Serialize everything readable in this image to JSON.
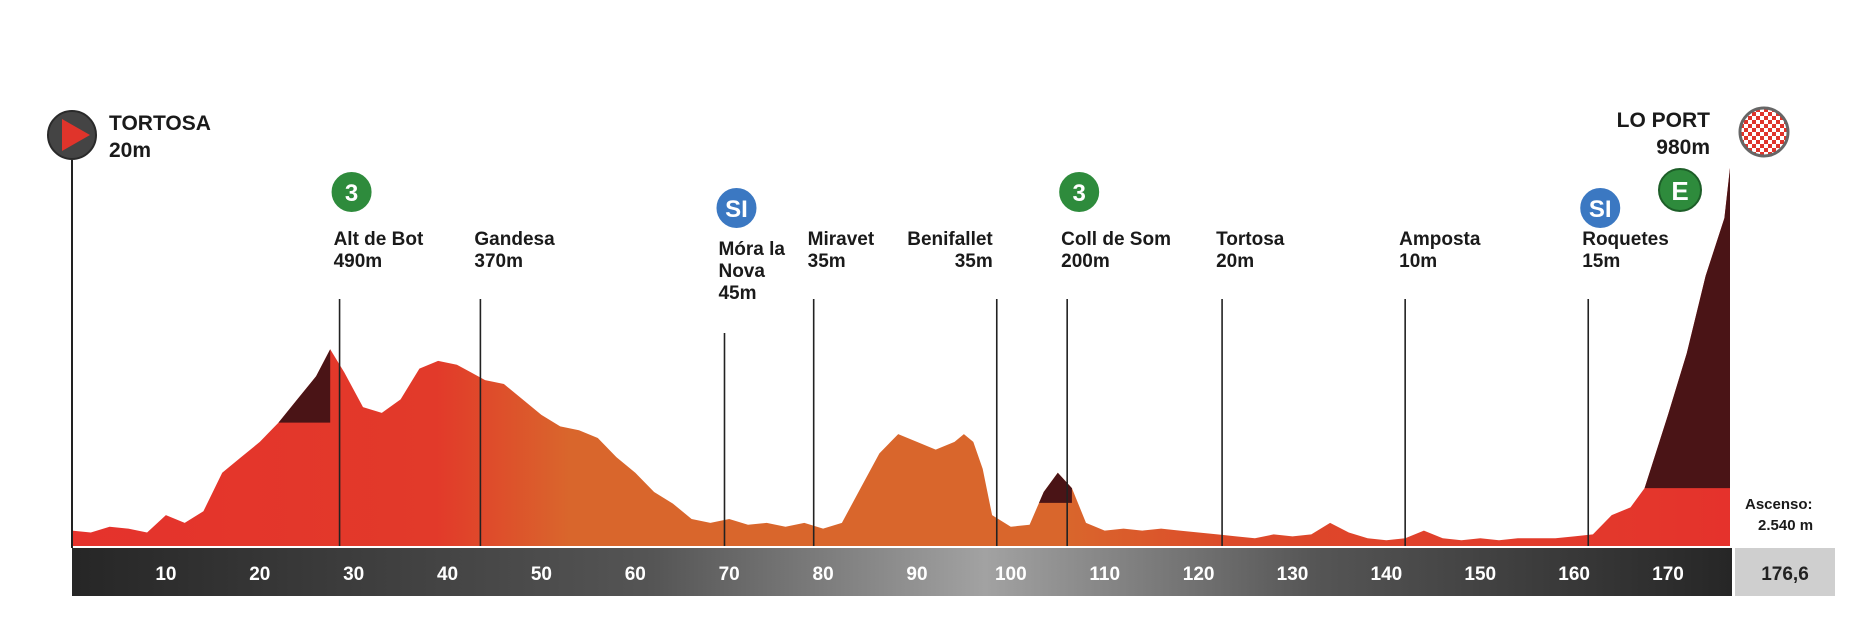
{
  "colors": {
    "red": "#e8322b",
    "orange": "#d9662c",
    "dark": "#4a1416",
    "kom_badge": "#2e8b3c",
    "sprint_badge": "#3b78c2",
    "axis_dark": "#2a2a2a",
    "axis_mid": "#9a9a9a"
  },
  "start": {
    "name": "TORTOSA",
    "alt": "20m",
    "icon": "start-arrow-icon"
  },
  "finish": {
    "name": "LO PORT",
    "alt": "980m",
    "icon": "checkered-flag-icon"
  },
  "ascenso": {
    "label": "Ascenso:",
    "value": "2.540 m"
  },
  "total_km": "176,6",
  "chart_data": {
    "type": "area",
    "xlim": [
      0,
      176.6
    ],
    "x_ticks": [
      10,
      20,
      30,
      40,
      50,
      60,
      70,
      80,
      90,
      100,
      110,
      120,
      130,
      140,
      150,
      160,
      170
    ],
    "profile": [
      [
        0,
        40
      ],
      [
        2,
        35
      ],
      [
        4,
        50
      ],
      [
        6,
        45
      ],
      [
        8,
        35
      ],
      [
        10,
        80
      ],
      [
        12,
        60
      ],
      [
        14,
        90
      ],
      [
        16,
        190
      ],
      [
        18,
        230
      ],
      [
        20,
        270
      ],
      [
        22,
        320
      ],
      [
        24,
        380
      ],
      [
        26,
        440
      ],
      [
        27.5,
        510
      ],
      [
        29,
        450
      ],
      [
        31,
        360
      ],
      [
        33,
        345
      ],
      [
        35,
        380
      ],
      [
        37,
        460
      ],
      [
        39,
        480
      ],
      [
        41,
        470
      ],
      [
        42.5,
        450
      ],
      [
        44,
        430
      ],
      [
        46,
        420
      ],
      [
        48,
        380
      ],
      [
        50,
        340
      ],
      [
        52,
        310
      ],
      [
        54,
        300
      ],
      [
        56,
        280
      ],
      [
        58,
        230
      ],
      [
        60,
        190
      ],
      [
        62,
        140
      ],
      [
        64,
        110
      ],
      [
        66,
        70
      ],
      [
        68,
        60
      ],
      [
        70,
        70
      ],
      [
        72,
        55
      ],
      [
        74,
        60
      ],
      [
        76,
        50
      ],
      [
        78,
        60
      ],
      [
        80,
        45
      ],
      [
        82,
        60
      ],
      [
        84,
        150
      ],
      [
        86,
        240
      ],
      [
        88,
        290
      ],
      [
        90,
        270
      ],
      [
        92,
        250
      ],
      [
        94,
        270
      ],
      [
        95,
        290
      ],
      [
        96,
        270
      ],
      [
        97,
        200
      ],
      [
        98,
        80
      ],
      [
        100,
        50
      ],
      [
        102,
        55
      ],
      [
        103.5,
        140
      ],
      [
        105,
        190
      ],
      [
        106.5,
        150
      ],
      [
        108,
        60
      ],
      [
        110,
        40
      ],
      [
        112,
        45
      ],
      [
        114,
        40
      ],
      [
        116,
        45
      ],
      [
        118,
        40
      ],
      [
        120,
        35
      ],
      [
        122,
        30
      ],
      [
        124,
        25
      ],
      [
        126,
        20
      ],
      [
        128,
        30
      ],
      [
        130,
        25
      ],
      [
        132,
        30
      ],
      [
        134,
        60
      ],
      [
        136,
        35
      ],
      [
        138,
        20
      ],
      [
        140,
        15
      ],
      [
        142,
        20
      ],
      [
        144,
        40
      ],
      [
        146,
        20
      ],
      [
        148,
        15
      ],
      [
        150,
        20
      ],
      [
        152,
        15
      ],
      [
        154,
        20
      ],
      [
        156,
        20
      ],
      [
        158,
        20
      ],
      [
        160,
        25
      ],
      [
        162,
        30
      ],
      [
        164,
        80
      ],
      [
        166,
        100
      ],
      [
        167.5,
        150
      ],
      [
        170,
        340
      ],
      [
        172,
        500
      ],
      [
        174,
        700
      ],
      [
        176,
        850
      ],
      [
        176.6,
        980
      ]
    ],
    "climbs": [
      {
        "x_start": 22,
        "x_end": 27.5,
        "color": "dark",
        "category": "3"
      },
      {
        "x_start": 103,
        "x_end": 106.5,
        "color": "dark",
        "category": "3"
      },
      {
        "x_start": 167.5,
        "x_end": 176.6,
        "color": "dark",
        "category": "E"
      }
    ],
    "waypoints": [
      {
        "name": "Alt de Bot",
        "alt": "490m",
        "km": 28.5,
        "badge": "3",
        "badge_type": "kom"
      },
      {
        "name": "Gandesa",
        "alt": "370m",
        "km": 43.5
      },
      {
        "name_lines": [
          "Móra la",
          "Nova"
        ],
        "alt": "45m",
        "km": 69.5,
        "badge": "SI",
        "badge_type": "sprint"
      },
      {
        "name": "Miravet",
        "alt": "35m",
        "km": 79
      },
      {
        "name": "Benifallet",
        "alt": "35m",
        "km": 98.5,
        "align": "right"
      },
      {
        "name": "Coll de Som",
        "alt": "200m",
        "km": 106,
        "badge": "3",
        "badge_type": "kom"
      },
      {
        "name": "Tortosa",
        "alt": "20m",
        "km": 122.5
      },
      {
        "name": "Amposta",
        "alt": "10m",
        "km": 142
      },
      {
        "name": "Roquetes",
        "alt": "15m",
        "km": 161.5,
        "badge": "SI",
        "badge_type": "sprint"
      }
    ],
    "finish_badge": "E"
  }
}
